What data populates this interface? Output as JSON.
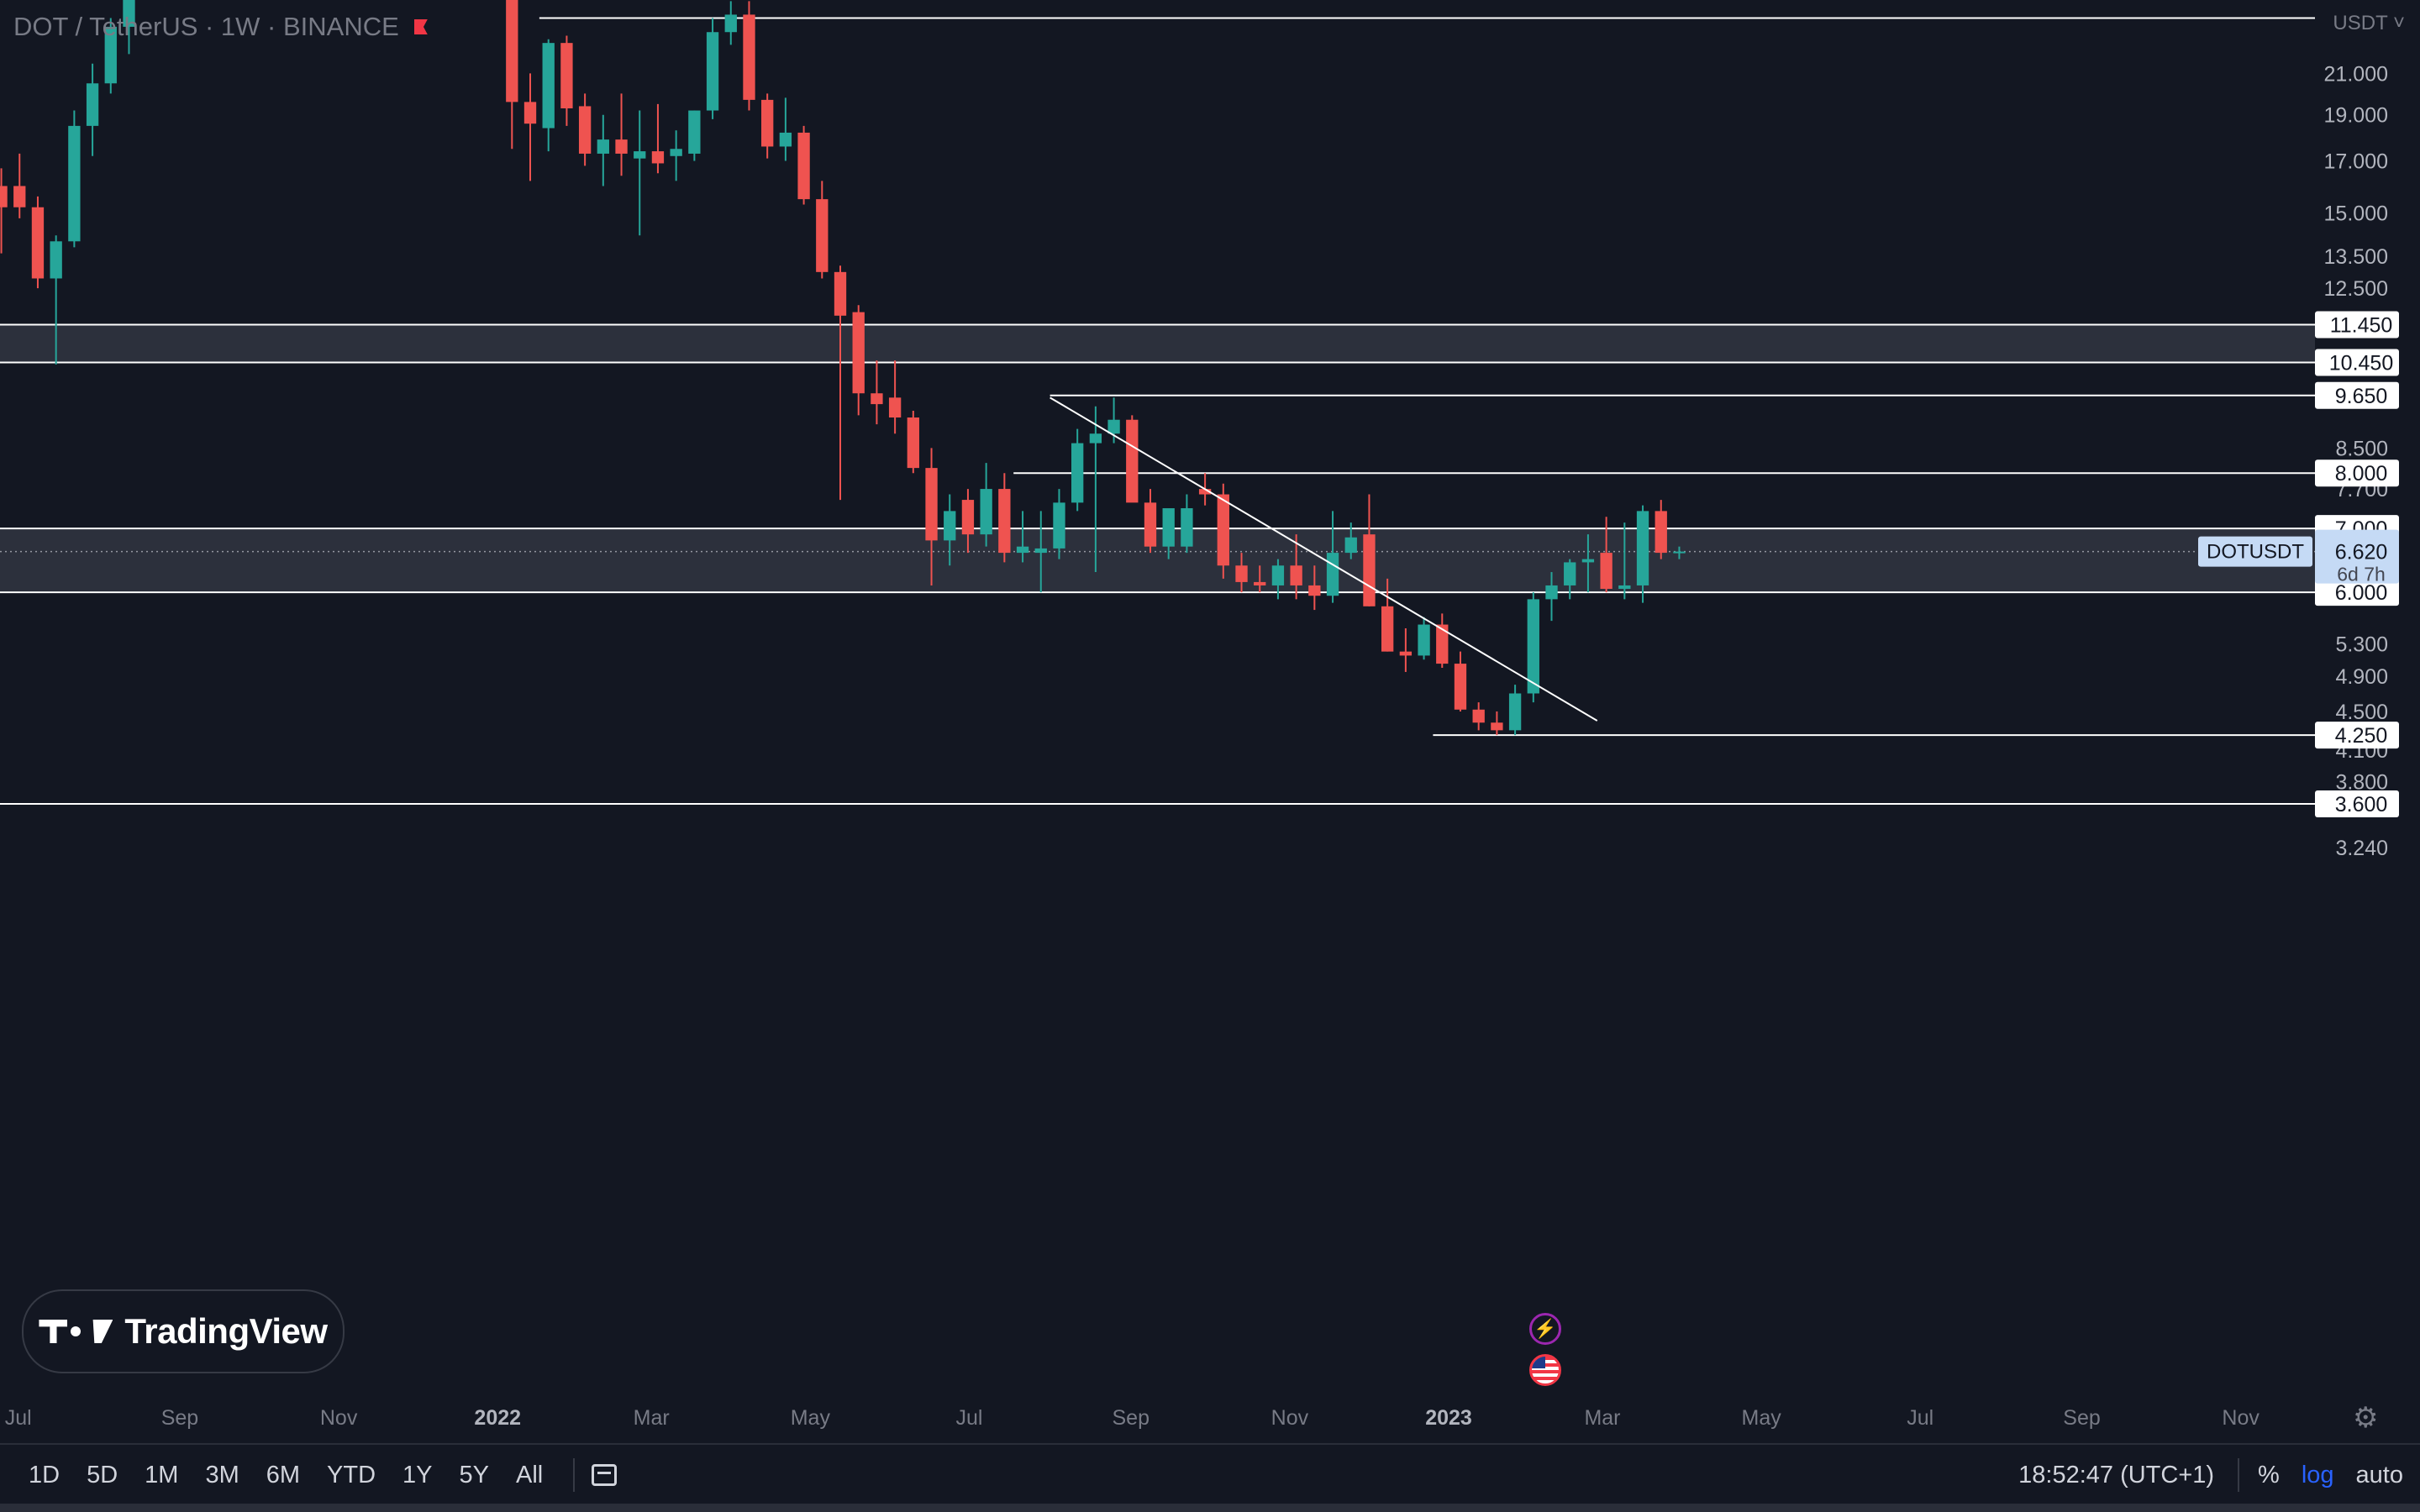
{
  "header": {
    "title": "DOT / TetherUS · 1W · BINANCE"
  },
  "price_axis": {
    "currency": "USDT"
  },
  "logo": {
    "text": "TradingView"
  },
  "chart_data": {
    "type": "candlestick",
    "title": "DOT / TetherUS · 1W · BINANCE",
    "scale": "log",
    "ylim": [
      3.0,
      24.5
    ],
    "xlim_dates": [
      "2021-06-24",
      "2023-12-14"
    ],
    "price_ticks": [
      21.0,
      19.0,
      17.0,
      15.0,
      13.5,
      12.5,
      8.5,
      7.7,
      5.3,
      4.9,
      4.5,
      4.1,
      3.8,
      3.24
    ],
    "time_ticks": [
      {
        "label": "Jul",
        "date": "2021-07-01"
      },
      {
        "label": "Sep",
        "date": "2021-09-01"
      },
      {
        "label": "Nov",
        "date": "2021-11-01"
      },
      {
        "label": "2022",
        "date": "2022-01-01",
        "bold": true
      },
      {
        "label": "Mar",
        "date": "2022-03-01"
      },
      {
        "label": "May",
        "date": "2022-05-01"
      },
      {
        "label": "Jul",
        "date": "2022-07-01"
      },
      {
        "label": "Sep",
        "date": "2022-09-01"
      },
      {
        "label": "Nov",
        "date": "2022-11-01"
      },
      {
        "label": "2023",
        "date": "2023-01-01",
        "bold": true
      },
      {
        "label": "Mar",
        "date": "2023-03-01"
      },
      {
        "label": "May",
        "date": "2023-05-01"
      },
      {
        "label": "Jul",
        "date": "2023-07-01"
      },
      {
        "label": "Sep",
        "date": "2023-09-01"
      },
      {
        "label": "Nov",
        "date": "2023-11-01"
      }
    ],
    "levels": [
      {
        "price": 11.45,
        "label": "11.450"
      },
      {
        "price": 10.45,
        "label": "10.450"
      },
      {
        "price": 9.65,
        "label": "9.650",
        "start": "2022-08-01"
      },
      {
        "price": 8.0,
        "label": "8.000",
        "start": "2022-07-18"
      },
      {
        "price": 7.0,
        "label": "7.000"
      },
      {
        "price": 6.0,
        "label": "6.000"
      },
      {
        "price": 4.25,
        "label": "4.250",
        "start": "2022-12-26"
      },
      {
        "price": 3.6,
        "label": "3.600"
      }
    ],
    "top_line": {
      "price": 24.0,
      "start": "2022-01-17",
      "end": "2023-12-07"
    },
    "zones": [
      [
        10.45,
        11.45
      ],
      [
        6.0,
        7.0
      ]
    ],
    "trendline": {
      "start": {
        "date": "2022-08-01",
        "price": 9.6
      },
      "end": {
        "date": "2023-02-27",
        "price": 4.4
      }
    },
    "last_price": {
      "symbol": "DOTUSDT",
      "price": 6.62,
      "label": "6.620",
      "countdown": "6d 7h"
    },
    "candles": [
      {
        "d": "2021-06-21",
        "o": 16.0,
        "h": 16.7,
        "l": 13.6,
        "c": 15.2
      },
      {
        "d": "2021-06-28",
        "o": 16.0,
        "h": 17.3,
        "l": 14.8,
        "c": 15.2
      },
      {
        "d": "2021-07-05",
        "o": 15.2,
        "h": 15.6,
        "l": 12.5,
        "c": 12.8
      },
      {
        "d": "2021-07-12",
        "o": 12.8,
        "h": 14.2,
        "l": 10.4,
        "c": 14.0
      },
      {
        "d": "2021-07-19",
        "o": 14.0,
        "h": 19.2,
        "l": 13.8,
        "c": 18.5
      },
      {
        "d": "2021-07-26",
        "o": 18.5,
        "h": 21.5,
        "l": 17.2,
        "c": 20.5
      },
      {
        "d": "2021-08-02",
        "o": 20.5,
        "h": 24.0,
        "l": 20.0,
        "c": 23.5
      },
      {
        "d": "2021-08-09",
        "o": 23.5,
        "h": 26.0,
        "l": 22.0,
        "c": 25.5
      },
      {
        "d": "2022-01-03",
        "o": 26.0,
        "h": 27.5,
        "l": 17.5,
        "c": 19.6
      },
      {
        "d": "2022-01-10",
        "o": 19.6,
        "h": 21.0,
        "l": 16.2,
        "c": 18.6
      },
      {
        "d": "2022-01-17",
        "o": 18.4,
        "h": 22.8,
        "l": 17.4,
        "c": 22.6
      },
      {
        "d": "2022-01-24",
        "o": 22.6,
        "h": 23.0,
        "l": 18.5,
        "c": 19.3
      },
      {
        "d": "2022-01-31",
        "o": 19.4,
        "h": 20.0,
        "l": 16.8,
        "c": 17.3
      },
      {
        "d": "2022-02-07",
        "o": 17.3,
        "h": 19.0,
        "l": 16.0,
        "c": 17.9
      },
      {
        "d": "2022-02-14",
        "o": 17.9,
        "h": 20.0,
        "l": 16.4,
        "c": 17.3
      },
      {
        "d": "2022-02-21",
        "o": 17.1,
        "h": 19.2,
        "l": 14.2,
        "c": 17.4
      },
      {
        "d": "2022-02-28",
        "o": 17.4,
        "h": 19.5,
        "l": 16.5,
        "c": 16.9
      },
      {
        "d": "2022-03-07",
        "o": 17.2,
        "h": 18.3,
        "l": 16.2,
        "c": 17.5
      },
      {
        "d": "2022-03-14",
        "o": 17.3,
        "h": 19.2,
        "l": 17.0,
        "c": 19.2
      },
      {
        "d": "2022-03-21",
        "o": 19.2,
        "h": 24.0,
        "l": 18.8,
        "c": 23.2
      },
      {
        "d": "2022-03-28",
        "o": 23.2,
        "h": 25.0,
        "l": 22.5,
        "c": 24.2
      },
      {
        "d": "2022-04-04",
        "o": 24.2,
        "h": 25.0,
        "l": 19.2,
        "c": 19.7
      },
      {
        "d": "2022-04-11",
        "o": 19.7,
        "h": 20.0,
        "l": 17.1,
        "c": 17.6
      },
      {
        "d": "2022-04-18",
        "o": 17.6,
        "h": 19.8,
        "l": 17.0,
        "c": 18.2
      },
      {
        "d": "2022-04-25",
        "o": 18.2,
        "h": 18.5,
        "l": 15.3,
        "c": 15.5
      },
      {
        "d": "2022-05-02",
        "o": 15.5,
        "h": 16.2,
        "l": 12.8,
        "c": 13.0
      },
      {
        "d": "2022-05-09",
        "o": 13.0,
        "h": 13.2,
        "l": 7.5,
        "c": 11.7
      },
      {
        "d": "2022-05-16",
        "o": 11.8,
        "h": 12.0,
        "l": 9.2,
        "c": 9.7
      },
      {
        "d": "2022-05-23",
        "o": 9.7,
        "h": 10.5,
        "l": 9.0,
        "c": 9.45
      },
      {
        "d": "2022-05-30",
        "o": 9.6,
        "h": 10.5,
        "l": 8.8,
        "c": 9.15
      },
      {
        "d": "2022-06-06",
        "o": 9.15,
        "h": 9.3,
        "l": 8.0,
        "c": 8.1
      },
      {
        "d": "2022-06-13",
        "o": 8.1,
        "h": 8.5,
        "l": 6.1,
        "c": 6.8
      },
      {
        "d": "2022-06-20",
        "o": 6.8,
        "h": 7.6,
        "l": 6.4,
        "c": 7.3
      },
      {
        "d": "2022-06-27",
        "o": 7.5,
        "h": 7.7,
        "l": 6.6,
        "c": 6.9
      },
      {
        "d": "2022-07-04",
        "o": 6.9,
        "h": 8.2,
        "l": 6.7,
        "c": 7.7
      },
      {
        "d": "2022-07-11",
        "o": 7.7,
        "h": 8.0,
        "l": 6.45,
        "c": 6.6
      },
      {
        "d": "2022-07-18",
        "o": 6.6,
        "h": 7.3,
        "l": 6.45,
        "c": 6.7
      },
      {
        "d": "2022-07-25",
        "o": 6.6,
        "h": 7.3,
        "l": 6.0,
        "c": 6.67
      },
      {
        "d": "2022-08-01",
        "o": 6.67,
        "h": 7.7,
        "l": 6.5,
        "c": 7.45
      },
      {
        "d": "2022-08-08",
        "o": 7.45,
        "h": 8.9,
        "l": 7.3,
        "c": 8.6
      },
      {
        "d": "2022-08-15",
        "o": 8.6,
        "h": 9.4,
        "l": 6.3,
        "c": 8.8
      },
      {
        "d": "2022-08-22",
        "o": 8.8,
        "h": 9.6,
        "l": 8.6,
        "c": 9.1
      },
      {
        "d": "2022-08-29",
        "o": 9.1,
        "h": 9.2,
        "l": 7.6,
        "c": 7.45
      },
      {
        "d": "2022-09-05",
        "o": 7.45,
        "h": 7.7,
        "l": 6.6,
        "c": 6.7
      },
      {
        "d": "2022-09-12",
        "o": 6.7,
        "h": 7.2,
        "l": 6.5,
        "c": 7.35
      },
      {
        "d": "2022-09-19",
        "o": 6.7,
        "h": 7.6,
        "l": 6.6,
        "c": 7.35
      },
      {
        "d": "2022-09-26",
        "o": 7.7,
        "h": 8.0,
        "l": 7.4,
        "c": 7.6
      },
      {
        "d": "2022-10-03",
        "o": 7.6,
        "h": 7.8,
        "l": 6.2,
        "c": 6.4
      },
      {
        "d": "2022-10-10",
        "o": 6.4,
        "h": 6.6,
        "l": 6.0,
        "c": 6.15
      },
      {
        "d": "2022-10-17",
        "o": 6.15,
        "h": 6.4,
        "l": 6.0,
        "c": 6.1
      },
      {
        "d": "2022-10-24",
        "o": 6.1,
        "h": 6.5,
        "l": 5.9,
        "c": 6.4
      },
      {
        "d": "2022-10-31",
        "o": 6.4,
        "h": 6.9,
        "l": 5.9,
        "c": 6.1
      },
      {
        "d": "2022-11-07",
        "o": 6.1,
        "h": 6.4,
        "l": 5.75,
        "c": 5.95
      },
      {
        "d": "2022-11-14",
        "o": 5.95,
        "h": 7.3,
        "l": 5.85,
        "c": 6.6
      },
      {
        "d": "2022-11-21",
        "o": 6.6,
        "h": 7.1,
        "l": 6.5,
        "c": 6.85
      },
      {
        "d": "2022-11-28",
        "o": 6.9,
        "h": 7.6,
        "l": 5.8,
        "c": 5.8
      },
      {
        "d": "2022-12-05",
        "o": 5.8,
        "h": 6.2,
        "l": 5.2,
        "c": 5.2
      },
      {
        "d": "2022-12-12",
        "o": 5.2,
        "h": 5.5,
        "l": 4.95,
        "c": 5.15
      },
      {
        "d": "2022-12-19",
        "o": 5.15,
        "h": 5.65,
        "l": 5.1,
        "c": 5.55
      },
      {
        "d": "2022-12-26",
        "o": 5.55,
        "h": 5.7,
        "l": 5.0,
        "c": 5.05
      },
      {
        "d": "2023-01-02",
        "o": 5.05,
        "h": 5.2,
        "l": 4.5,
        "c": 4.52
      },
      {
        "d": "2023-01-09",
        "o": 4.52,
        "h": 4.6,
        "l": 4.3,
        "c": 4.38
      },
      {
        "d": "2023-01-16",
        "o": 4.38,
        "h": 4.5,
        "l": 4.25,
        "c": 4.3
      },
      {
        "d": "2023-01-23",
        "o": 4.3,
        "h": 4.8,
        "l": 4.25,
        "c": 4.7
      },
      {
        "d": "2023-01-30",
        "o": 4.7,
        "h": 6.0,
        "l": 4.6,
        "c": 5.9
      },
      {
        "d": "2023-02-06",
        "o": 5.9,
        "h": 6.3,
        "l": 5.6,
        "c": 6.1
      },
      {
        "d": "2023-02-13",
        "o": 6.1,
        "h": 6.5,
        "l": 5.9,
        "c": 6.45
      },
      {
        "d": "2023-02-20",
        "o": 6.45,
        "h": 6.9,
        "l": 6.0,
        "c": 6.5
      },
      {
        "d": "2023-02-27",
        "o": 6.6,
        "h": 7.2,
        "l": 6.0,
        "c": 6.05
      },
      {
        "d": "2023-03-06",
        "o": 6.05,
        "h": 7.1,
        "l": 5.9,
        "c": 6.1
      },
      {
        "d": "2023-03-13",
        "o": 6.1,
        "h": 7.4,
        "l": 5.85,
        "c": 7.3
      },
      {
        "d": "2023-03-20",
        "o": 7.3,
        "h": 7.5,
        "l": 6.5,
        "c": 6.6
      },
      {
        "d": "2023-03-27",
        "o": 6.6,
        "h": 6.7,
        "l": 6.5,
        "c": 6.62
      }
    ]
  },
  "bottombar": {
    "ranges": [
      "1D",
      "5D",
      "1M",
      "3M",
      "6M",
      "YTD",
      "1Y",
      "5Y",
      "All"
    ],
    "clock": "18:52:47 (UTC+1)",
    "percent": "%",
    "log": "log",
    "auto": "auto"
  }
}
